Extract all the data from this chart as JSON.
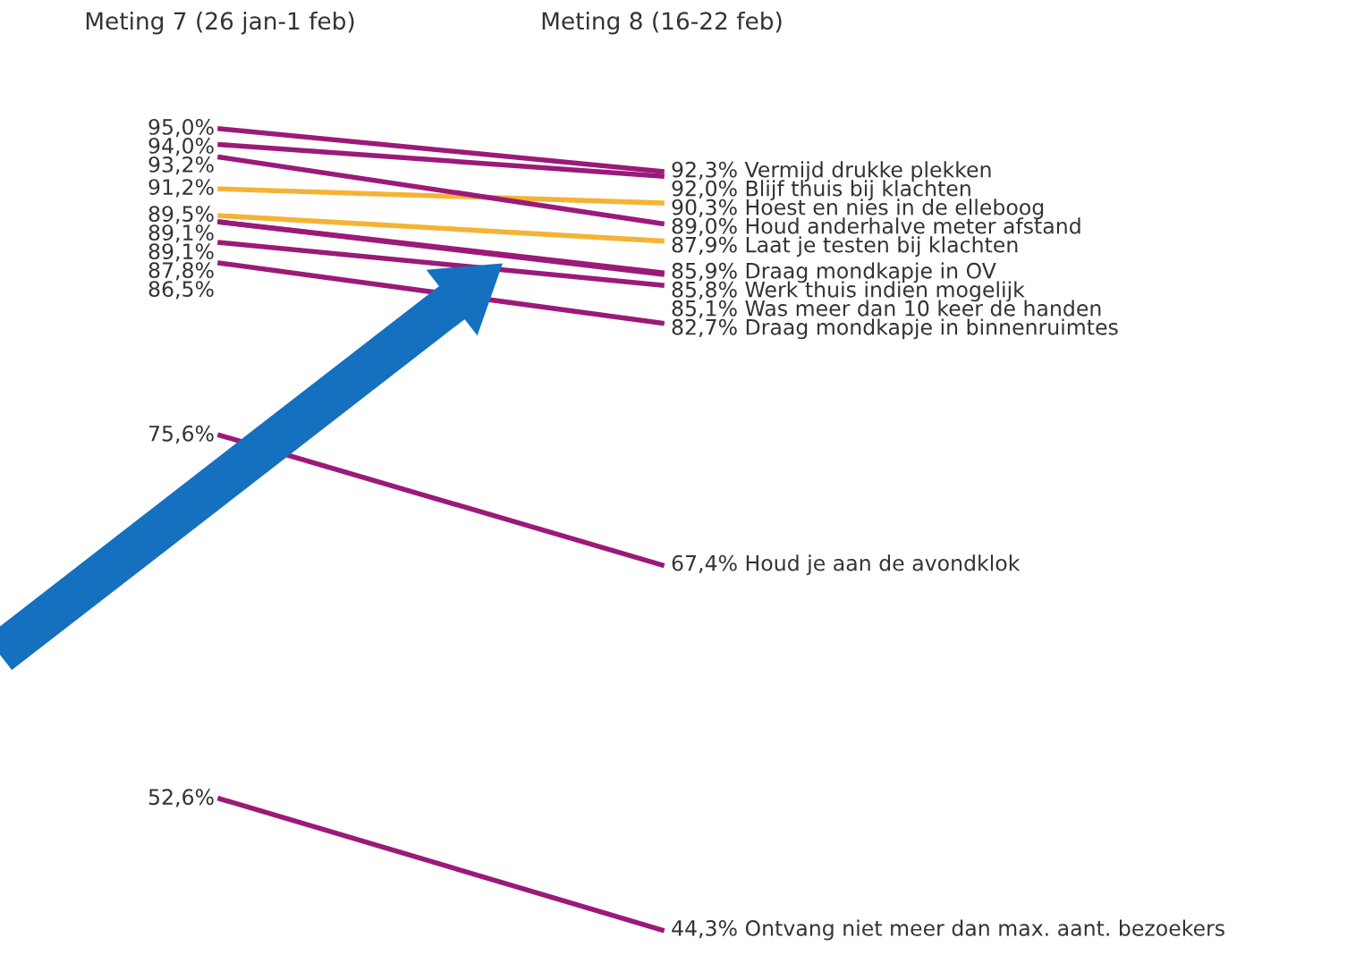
{
  "chart_data": {
    "type": "line",
    "categories": [
      "Meting 7 (26 jan-1 feb)",
      "Meting 8 (16-22 feb)"
    ],
    "series": [
      {
        "name": "Vermijd drukke plekken",
        "color": "#9b1a79",
        "values": [
          95.0,
          92.3
        ],
        "value_labels": [
          "95,0%",
          "92,3%"
        ]
      },
      {
        "name": "Blijf thuis bij klachten",
        "color": "#9b1a79",
        "values": [
          94.0,
          92.0
        ],
        "value_labels": [
          "94,0%",
          "92,0%"
        ]
      },
      {
        "name": "Hoest en nies in de elleboog",
        "color": "#f5b335",
        "values": [
          91.2,
          90.3
        ],
        "value_labels": [
          "91,2%",
          "90,3%"
        ]
      },
      {
        "name": "Houd anderhalve meter afstand",
        "color": "#9b1a79",
        "values": [
          93.2,
          89.0
        ],
        "value_labels": [
          "93,2%",
          "89,0%"
        ]
      },
      {
        "name": "Laat je testen bij klachten",
        "color": "#f5b335",
        "values": [
          89.5,
          87.9
        ],
        "value_labels": [
          "89,5%",
          "87,9%"
        ]
      },
      {
        "name": "Draag mondkapje in OV",
        "color": "#9b1a79",
        "values": [
          89.1,
          85.9
        ],
        "value_labels": [
          "89,1%",
          "85,9%"
        ]
      },
      {
        "name": "Werk thuis indien mogelijk",
        "color": "#9b1a79",
        "values": [
          89.1,
          85.8
        ],
        "value_labels": [
          "89,1%",
          "85,8%"
        ]
      },
      {
        "name": "Was meer dan 10 keer de handen",
        "color": "#9b1a79",
        "values": [
          87.8,
          85.1
        ],
        "value_labels": [
          "87,8%",
          "85,1%"
        ]
      },
      {
        "name": "Draag mondkapje in binnenruimtes",
        "color": "#9b1a79",
        "values": [
          86.5,
          82.7
        ],
        "value_labels": [
          "86,5%",
          "82,7%"
        ]
      },
      {
        "name": "Houd je aan de avondklok",
        "color": "#9b1a79",
        "values": [
          75.6,
          67.4
        ],
        "value_labels": [
          "75,6%",
          "67,4%"
        ]
      },
      {
        "name": "Ontvang niet meer dan max. aant. bezoekers",
        "color": "#9b1a79",
        "values": [
          52.6,
          44.3
        ],
        "value_labels": [
          "52,6%",
          "44,3%"
        ]
      }
    ],
    "grid": false,
    "legend": false,
    "marker": "none",
    "line_style": "solid"
  }
}
